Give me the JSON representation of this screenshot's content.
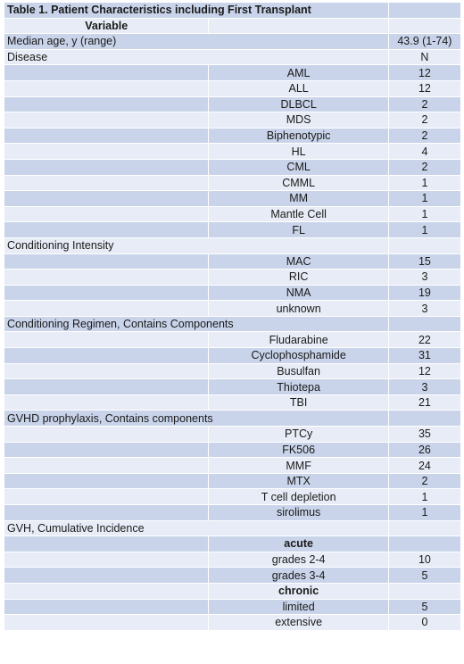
{
  "title": "Table 1.  Patient Characteristics including First Transplant",
  "header": {
    "variable": "Variable"
  },
  "rows": [
    {
      "type": "section",
      "label": "Median age, y (range)",
      "value": "43.9 (1-74)",
      "shade": "dark"
    },
    {
      "type": "section",
      "label": "Disease",
      "value": "N",
      "shade": "light"
    },
    {
      "type": "item",
      "label": "AML",
      "value": "12",
      "shade": "dark"
    },
    {
      "type": "item",
      "label": "ALL",
      "value": "12",
      "shade": "light"
    },
    {
      "type": "item",
      "label": "DLBCL",
      "value": "2",
      "shade": "dark"
    },
    {
      "type": "item",
      "label": "MDS",
      "value": "2",
      "shade": "light"
    },
    {
      "type": "item",
      "label": "Biphenotypic",
      "value": "2",
      "shade": "dark"
    },
    {
      "type": "item",
      "label": "HL",
      "value": "4",
      "shade": "light"
    },
    {
      "type": "item",
      "label": "CML",
      "value": "2",
      "shade": "dark"
    },
    {
      "type": "item",
      "label": "CMML",
      "value": "1",
      "shade": "light"
    },
    {
      "type": "item",
      "label": "MM",
      "value": "1",
      "shade": "dark"
    },
    {
      "type": "item",
      "label": "Mantle Cell",
      "value": "1",
      "shade": "light"
    },
    {
      "type": "item",
      "label": "FL",
      "value": "1",
      "shade": "dark"
    },
    {
      "type": "section",
      "label": "Conditioning Intensity",
      "value": "",
      "shade": "light"
    },
    {
      "type": "item",
      "label": "MAC",
      "value": "15",
      "shade": "dark"
    },
    {
      "type": "item",
      "label": "RIC",
      "value": "3",
      "shade": "light"
    },
    {
      "type": "item",
      "label": "NMA",
      "value": "19",
      "shade": "dark"
    },
    {
      "type": "item",
      "label": "unknown",
      "value": "3",
      "shade": "light"
    },
    {
      "type": "section",
      "label": "Conditioning Regimen, Contains Components",
      "value": "",
      "shade": "dark"
    },
    {
      "type": "item",
      "label": "Fludarabine",
      "value": "22",
      "shade": "light"
    },
    {
      "type": "item",
      "label": "Cyclophosphamide",
      "value": "31",
      "shade": "dark"
    },
    {
      "type": "item",
      "label": "Busulfan",
      "value": "12",
      "shade": "light"
    },
    {
      "type": "item",
      "label": "Thiotepa",
      "value": "3",
      "shade": "dark"
    },
    {
      "type": "item",
      "label": "TBI",
      "value": "21",
      "shade": "light"
    },
    {
      "type": "section",
      "label": "GVHD prophylaxis, Contains components",
      "value": "",
      "shade": "dark"
    },
    {
      "type": "item",
      "label": "PTCy",
      "value": "35",
      "shade": "light"
    },
    {
      "type": "item",
      "label": "FK506",
      "value": "26",
      "shade": "dark"
    },
    {
      "type": "item",
      "label": "MMF",
      "value": "24",
      "shade": "light"
    },
    {
      "type": "item",
      "label": "MTX",
      "value": "2",
      "shade": "dark"
    },
    {
      "type": "item",
      "label": "T cell depletion",
      "value": "1",
      "shade": "light"
    },
    {
      "type": "item",
      "label": "sirolimus",
      "value": "1",
      "shade": "dark"
    },
    {
      "type": "section-indent",
      "label": "GVH, Cumulative Incidence",
      "value": "",
      "shade": "light"
    },
    {
      "type": "item-bold",
      "label": "acute",
      "value": "",
      "shade": "dark"
    },
    {
      "type": "item",
      "label": "grades 2-4",
      "value": "10",
      "shade": "light"
    },
    {
      "type": "item",
      "label": "grades 3-4",
      "value": "5",
      "shade": "dark"
    },
    {
      "type": "item-bold",
      "label": "chronic",
      "value": "",
      "shade": "light"
    },
    {
      "type": "item",
      "label": "limited",
      "value": "5",
      "shade": "dark"
    },
    {
      "type": "item",
      "label": "extensive",
      "value": "0",
      "shade": "light"
    }
  ]
}
